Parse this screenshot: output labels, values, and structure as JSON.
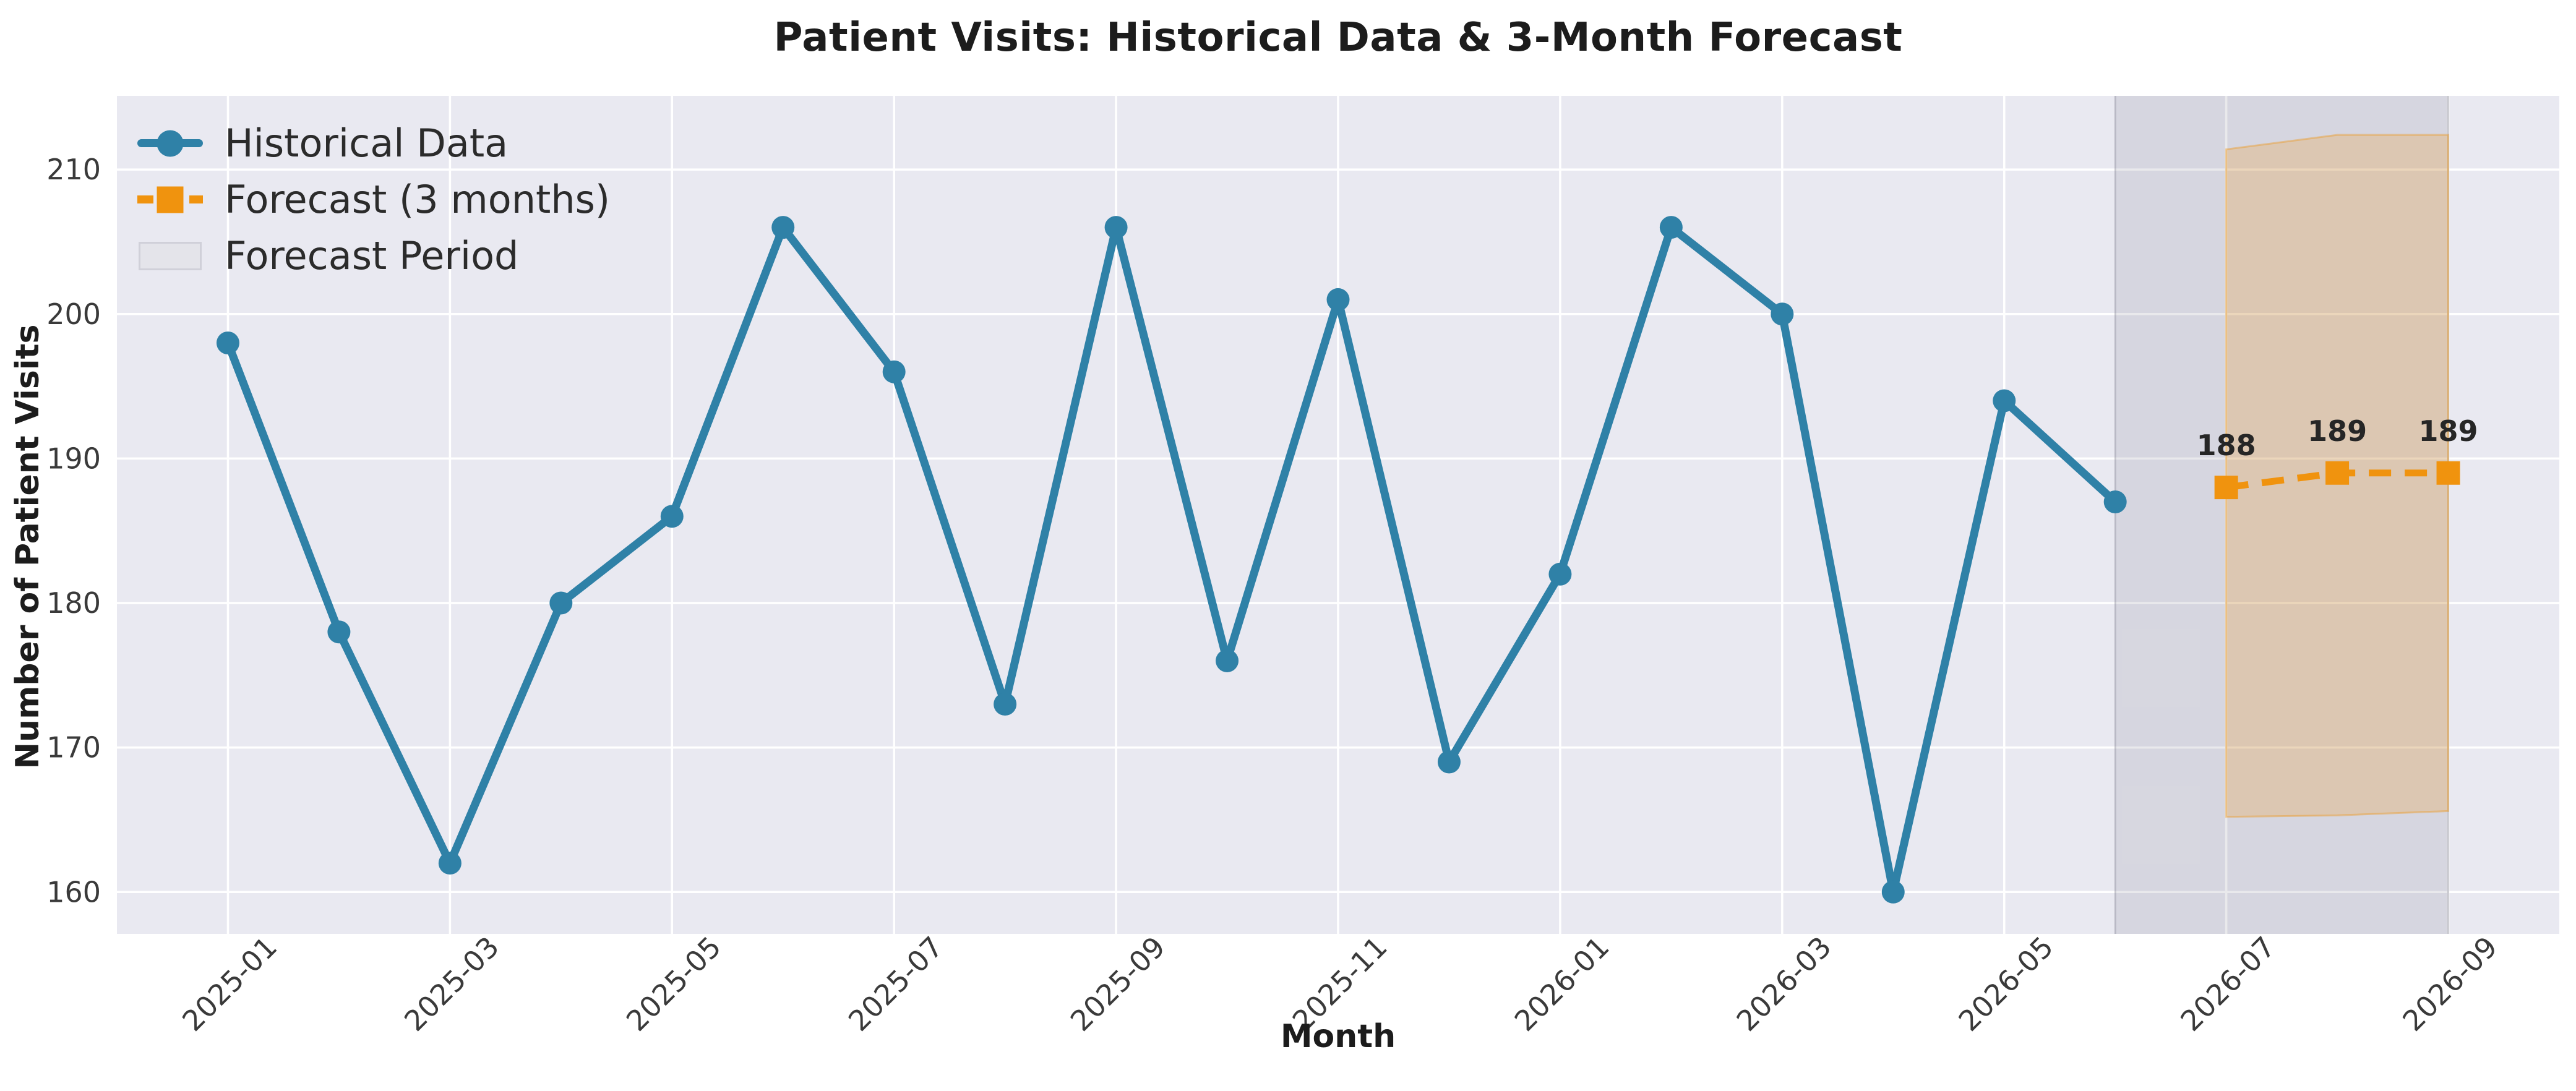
{
  "chart_data": {
    "type": "line",
    "title": "Patient Visits: Historical Data & 3-Month Forecast",
    "xlabel": "Month",
    "ylabel": "Number of Patient Visits",
    "grid": true,
    "legend_position": "upper-left",
    "months": [
      "2025-01",
      "2025-02",
      "2025-03",
      "2025-04",
      "2025-05",
      "2025-06",
      "2025-07",
      "2025-08",
      "2025-09",
      "2025-10",
      "2025-11",
      "2025-12",
      "2026-01",
      "2026-02",
      "2026-03",
      "2026-04",
      "2026-05",
      "2026-06",
      "2026-07",
      "2026-08",
      "2026-09"
    ],
    "x_tick_labels": [
      "2025-01",
      "2025-03",
      "2025-05",
      "2025-07",
      "2025-09",
      "2025-11",
      "2026-01",
      "2026-03",
      "2026-05",
      "2026-07",
      "2026-09"
    ],
    "y_ticks": [
      160,
      170,
      180,
      190,
      200,
      210
    ],
    "ylim": [
      157.1,
      215.1
    ],
    "series": [
      {
        "name": "Historical Data",
        "style": "solid-line-circle-markers",
        "color": "#2f81a7",
        "months": [
          "2025-01",
          "2025-02",
          "2025-03",
          "2025-04",
          "2025-05",
          "2025-06",
          "2025-07",
          "2025-08",
          "2025-09",
          "2025-10",
          "2025-11",
          "2025-12",
          "2026-01",
          "2026-02",
          "2026-03",
          "2026-04",
          "2026-05",
          "2026-06"
        ],
        "values": [
          198,
          178,
          162,
          180,
          186,
          206,
          196,
          173,
          206,
          176,
          201,
          169,
          182,
          206,
          200,
          160,
          194,
          187
        ]
      },
      {
        "name": "Forecast (3 months)",
        "style": "dashed-line-square-markers",
        "color": "#f0930e",
        "months": [
          "2026-07",
          "2026-08",
          "2026-09"
        ],
        "values": [
          188,
          189,
          189
        ],
        "point_labels": [
          "188",
          "189",
          "189"
        ]
      }
    ],
    "confidence_band": {
      "months": [
        "2026-07",
        "2026-08",
        "2026-09"
      ],
      "lower": [
        165.2,
        165.3,
        165.6
      ],
      "upper": [
        211.4,
        212.4,
        212.4
      ]
    },
    "forecast_period": {
      "label": "Forecast Period",
      "from": "2026-06",
      "to": "2026-09"
    },
    "colors": {
      "historical": "#2f81a7",
      "forecast": "#f0930e",
      "plot_background": "#e9e9f1",
      "grid": "#ffffff",
      "forecast_period_fill": "rgba(127,127,140,0.17)",
      "forecast_period_edge": "rgba(110,110,125,0.30)",
      "band_fill": "rgba(240,147,13,0.22)",
      "band_edge": "rgba(240,147,13,0.38)",
      "tick_text": "#3a3a3a",
      "text": "#1c1c1c",
      "annotation_text": "#262626",
      "legend_patch_fill": "#e4e4ea",
      "legend_patch_edge": "#d0d0d9"
    }
  }
}
